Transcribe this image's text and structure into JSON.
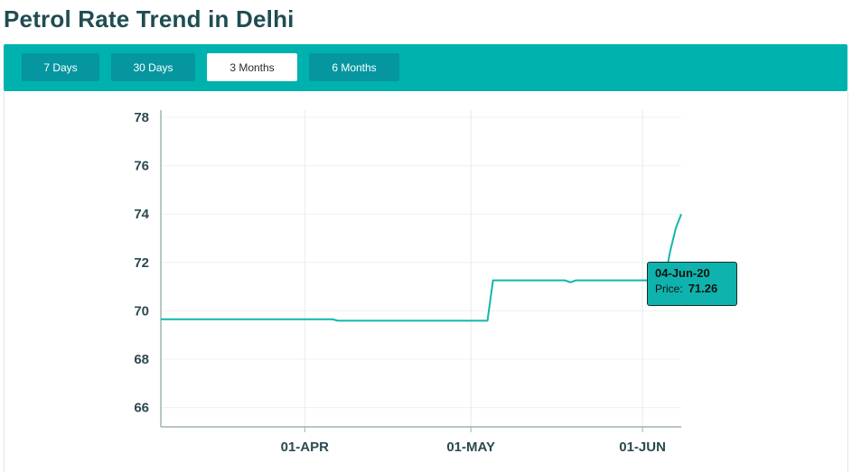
{
  "title": "Petrol Rate Trend in Delhi",
  "range_buttons": [
    {
      "label": "7 Days",
      "active": false
    },
    {
      "label": "30 Days",
      "active": false
    },
    {
      "label": "3 Months",
      "active": true
    },
    {
      "label": "6 Months",
      "active": false
    }
  ],
  "colors": {
    "accent": "#00b2ad",
    "button": "#0596a0",
    "line": "#12b5ae",
    "title": "#1f4d52"
  },
  "tooltip": {
    "date": "04-Jun-20",
    "price_label": "Price:",
    "price_value": "71.26"
  },
  "chart_data": {
    "type": "line",
    "title": "",
    "xlabel": "",
    "ylabel": "",
    "ylim": [
      65.2,
      78.3
    ],
    "yticks": [
      66,
      68,
      70,
      72,
      74,
      76,
      78
    ],
    "xlim": [
      "2020-03-06",
      "2020-06-08"
    ],
    "xticks": [
      {
        "date": "2020-04-01",
        "label": "01-APR"
      },
      {
        "date": "2020-05-01",
        "label": "01-MAY"
      },
      {
        "date": "2020-06-01",
        "label": "01-JUN"
      }
    ],
    "grid": true,
    "legend": "none",
    "series": [
      {
        "points": [
          [
            "2020-03-06",
            69.65
          ],
          [
            "2020-04-06",
            69.65
          ],
          [
            "2020-04-07",
            69.59
          ],
          [
            "2020-05-04",
            69.59
          ],
          [
            "2020-05-05",
            71.26
          ],
          [
            "2020-05-18",
            71.26
          ],
          [
            "2020-05-19",
            71.18
          ],
          [
            "2020-05-20",
            71.26
          ],
          [
            "2020-06-04",
            71.26
          ],
          [
            "2020-06-05",
            71.26
          ],
          [
            "2020-06-06",
            72.46
          ],
          [
            "2020-06-07",
            73.4
          ],
          [
            "2020-06-08",
            74.0
          ]
        ]
      }
    ],
    "highlight": {
      "date": "2020-06-04",
      "value": 71.26
    }
  }
}
